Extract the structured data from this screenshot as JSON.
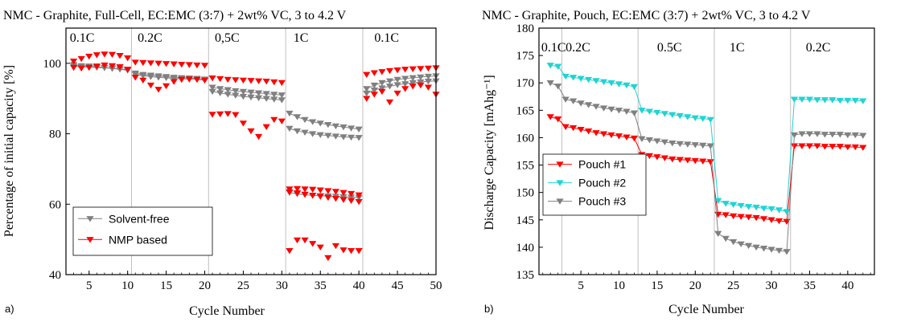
{
  "chart_data": [
    {
      "type": "scatter",
      "panel_label": "a)",
      "title": "NMC - Graphite, Full-Cell, EC:EMC (3:7) + 2wt% VC, 3 to 4.2 V",
      "xlabel": "Cycle Number",
      "ylabel": "Percentage of initial capacity [%]",
      "xlim": [
        2,
        50
      ],
      "ylim": [
        40,
        110
      ],
      "xticks": [
        5,
        10,
        15,
        20,
        25,
        30,
        35,
        40,
        45,
        50
      ],
      "yticks": [
        40,
        60,
        80,
        100
      ],
      "grid": false,
      "legend_position": "bottom-left",
      "region_dividers": [
        10.5,
        20.5,
        30.5,
        40.5
      ],
      "regions": [
        {
          "label": "0.1C",
          "x": 2.5
        },
        {
          "label": "0.2C",
          "x": 11.3
        },
        {
          "label": "0,5C",
          "x": 21.3
        },
        {
          "label": "1C",
          "x": 31.5
        },
        {
          "label": "0.1C",
          "x": 42
        }
      ],
      "series": [
        {
          "name": "Solvent-free",
          "color": "#808080",
          "marker": "triangle-down",
          "lines": true,
          "groups": [
            {
              "x": [
                3,
                4,
                5,
                6,
                7,
                8,
                9,
                10
              ],
              "y": [
                99.2,
                99.0,
                98.9,
                98.8,
                98.7,
                98.6,
                98.4,
                98.2
              ]
            },
            {
              "x": [
                3,
                4,
                5,
                6,
                7,
                8,
                9,
                10
              ],
              "y": [
                99.6,
                99.3,
                99.2,
                99.0,
                98.8,
                98.5,
                98.3,
                98.0
              ]
            },
            {
              "x": [
                11,
                12,
                13,
                14,
                15,
                16,
                17,
                18,
                19,
                20
              ],
              "y": [
                97.2,
                96.8,
                96.6,
                96.4,
                96.2,
                96.0,
                95.9,
                95.8,
                95.7,
                95.5
              ]
            },
            {
              "x": [
                11,
                12,
                13,
                14,
                15,
                16,
                17,
                18,
                19,
                20
              ],
              "y": [
                96.8,
                96.5,
                96.2,
                96.0,
                95.9,
                95.7,
                95.6,
                95.5,
                95.4,
                95.2
              ]
            },
            {
              "x": [
                21,
                22,
                23,
                24,
                25,
                26,
                27,
                28,
                29,
                30
              ],
              "y": [
                93.2,
                92.8,
                92.5,
                92.2,
                92.0,
                91.8,
                91.6,
                91.4,
                91.2,
                91.0
              ]
            },
            {
              "x": [
                21,
                22,
                23,
                24,
                25,
                26,
                27,
                28,
                29,
                30
              ],
              "y": [
                92.0,
                91.6,
                91.2,
                90.9,
                90.6,
                90.4,
                90.2,
                90.0,
                89.8,
                89.6
              ]
            },
            {
              "x": [
                31,
                32,
                33,
                34,
                35,
                36,
                37,
                38,
                39,
                40
              ],
              "y": [
                85.8,
                84.8,
                84.0,
                83.4,
                83.0,
                82.6,
                82.2,
                81.9,
                81.6,
                81.3
              ]
            },
            {
              "x": [
                31,
                32,
                33,
                34,
                35,
                36,
                37,
                38,
                39,
                40
              ],
              "y": [
                81.5,
                80.8,
                80.4,
                80.0,
                79.7,
                79.5,
                79.3,
                79.1,
                79.0,
                78.9
              ]
            },
            {
              "x": [
                31,
                32,
                33,
                34,
                35,
                36,
                37,
                38,
                39,
                40
              ],
              "y": [
                63.3,
                62.9,
                62.7,
                62.5,
                62.4,
                62.3,
                62.2,
                62.1,
                62.0,
                61.9
              ]
            },
            {
              "x": [
                41,
                42,
                43,
                44,
                45,
                46,
                47,
                48,
                49,
                50
              ],
              "y": [
                92.8,
                93.8,
                94.5,
                95.0,
                95.4,
                95.7,
                95.9,
                96.1,
                96.3,
                96.4
              ]
            },
            {
              "x": [
                41,
                42,
                43,
                44,
                45,
                46,
                47,
                48,
                49,
                50
              ],
              "y": [
                91.5,
                92.4,
                93.0,
                93.5,
                93.9,
                94.2,
                94.5,
                94.7,
                94.9,
                95.0
              ]
            }
          ]
        },
        {
          "name": "NMP based",
          "color": "#ff0000",
          "marker": "triangle-down",
          "lines": false,
          "groups": [
            {
              "x": [
                3,
                4,
                5,
                6,
                7,
                8,
                9,
                10
              ],
              "y": [
                100.6,
                101.3,
                102.0,
                102.4,
                102.6,
                102.5,
                102.2,
                101.5
              ]
            },
            {
              "x": [
                3,
                4,
                5,
                6,
                7,
                8,
                9,
                10
              ],
              "y": [
                98.8,
                98.6,
                98.8,
                99.2,
                99.5,
                99.3,
                99.0,
                98.3
              ]
            },
            {
              "x": [
                11,
                12,
                13,
                14,
                15,
                16,
                17,
                18,
                19,
                20
              ],
              "y": [
                100.3,
                100.2,
                100.1,
                100.0,
                99.9,
                99.8,
                99.7,
                99.6,
                99.5,
                99.4
              ]
            },
            {
              "x": [
                11,
                12,
                13,
                14,
                15,
                16,
                17,
                18,
                19,
                20
              ],
              "y": [
                96.0,
                95.2,
                93.8,
                92.6,
                93.6,
                94.8,
                95.4,
                95.5,
                95.4,
                95.2
              ]
            },
            {
              "x": [
                21,
                22,
                23,
                24,
                25,
                26,
                27,
                28,
                29,
                30
              ],
              "y": [
                95.8,
                95.6,
                95.4,
                95.3,
                95.2,
                95.1,
                95.0,
                94.9,
                94.7,
                94.5
              ]
            },
            {
              "x": [
                21,
                22,
                23,
                24,
                25,
                26,
                27,
                28,
                29,
                30
              ],
              "y": [
                85.5,
                85.6,
                85.7,
                85.4,
                83.0,
                80.8,
                79.2,
                82.0,
                84.0,
                83.6
              ]
            },
            {
              "x": [
                31,
                32,
                33,
                34,
                35,
                36,
                37,
                38,
                39,
                40
              ],
              "y": [
                64.3,
                64.4,
                64.3,
                64.2,
                64.0,
                63.8,
                63.6,
                63.3,
                63.0,
                62.6
              ]
            },
            {
              "x": [
                31,
                32,
                33,
                34,
                35,
                36,
                37,
                38,
                39,
                40
              ],
              "y": [
                63.5,
                63.2,
                62.8,
                62.5,
                62.2,
                61.9,
                61.6,
                61.3,
                61.0,
                60.7
              ]
            },
            {
              "x": [
                31,
                32,
                33,
                34,
                35,
                36,
                37,
                38,
                39,
                40
              ],
              "y": [
                46.8,
                49.8,
                49.8,
                48.8,
                47.8,
                44.8,
                48.2,
                47.0,
                46.8,
                46.8
              ]
            },
            {
              "x": [
                41,
                42,
                43,
                44,
                45,
                46,
                47,
                48,
                49,
                50
              ],
              "y": [
                96.8,
                97.3,
                97.6,
                97.9,
                98.1,
                98.3,
                98.4,
                98.5,
                98.6,
                98.7
              ]
            },
            {
              "x": [
                41,
                42,
                43,
                44,
                45,
                46,
                47,
                48,
                49,
                50
              ],
              "y": [
                90.0,
                91.2,
                92.0,
                89.0,
                91.5,
                92.8,
                93.5,
                93.8,
                93.2,
                91.2
              ]
            }
          ]
        }
      ]
    },
    {
      "type": "scatter",
      "panel_label": "b)",
      "title": "NMC - Graphite, Pouch, EC:EMC (3:7) + 2wt% VC, 3 to 4.2 V",
      "xlabel": "Cycle Number",
      "ylabel": "Discharge Capacity [mAhg⁻¹]",
      "xlim": [
        -0.5,
        43.5
      ],
      "ylim": [
        135,
        180
      ],
      "xticks": [
        5,
        10,
        15,
        20,
        25,
        30,
        35,
        40
      ],
      "yticks": [
        135,
        140,
        145,
        150,
        155,
        160,
        165,
        170,
        175,
        180
      ],
      "grid": false,
      "legend_position": "left",
      "region_dividers": [
        2.5,
        12.5,
        22.5,
        32.5
      ],
      "regions": [
        {
          "label": "0.1C",
          "x": -0.2
        },
        {
          "label": "0.2C",
          "x": 3.0
        },
        {
          "label": "0.5C",
          "x": 15.0
        },
        {
          "label": "1C",
          "x": 24.5
        },
        {
          "label": "0.2C",
          "x": 34.5
        }
      ],
      "series": [
        {
          "name": "Pouch #1",
          "color": "#ff0000",
          "marker": "triangle-down",
          "lines": true,
          "x": [
            1,
            2,
            3,
            4,
            5,
            6,
            7,
            8,
            9,
            10,
            11,
            12,
            13,
            14,
            15,
            16,
            17,
            18,
            19,
            20,
            21,
            22,
            23,
            24,
            25,
            26,
            27,
            28,
            29,
            30,
            31,
            32,
            33,
            34,
            35,
            36,
            37,
            38,
            39,
            40,
            41,
            42
          ],
          "y": [
            163.8,
            163.4,
            162.0,
            161.8,
            161.5,
            161.2,
            160.9,
            160.7,
            160.5,
            160.3,
            160.1,
            159.9,
            156.9,
            156.7,
            156.5,
            156.3,
            156.1,
            156.0,
            155.9,
            155.8,
            155.7,
            155.6,
            146.0,
            145.9,
            145.7,
            145.6,
            145.5,
            145.4,
            145.2,
            145.0,
            144.8,
            144.7,
            158.5,
            158.5,
            158.5,
            158.5,
            158.4,
            158.4,
            158.4,
            158.3,
            158.3,
            158.2
          ]
        },
        {
          "name": "Pouch #2",
          "color": "#22d3d3",
          "marker": "triangle-down",
          "lines": true,
          "x": [
            1,
            2,
            3,
            4,
            5,
            6,
            7,
            8,
            9,
            10,
            11,
            12,
            13,
            14,
            15,
            16,
            17,
            18,
            19,
            20,
            21,
            22,
            23,
            24,
            25,
            26,
            27,
            28,
            29,
            30,
            31,
            32,
            33,
            34,
            35,
            36,
            37,
            38,
            39,
            40,
            41,
            42
          ],
          "y": [
            173.2,
            173.0,
            171.2,
            171.0,
            170.8,
            170.6,
            170.4,
            170.2,
            170.0,
            169.8,
            169.6,
            169.3,
            165.0,
            164.8,
            164.6,
            164.4,
            164.2,
            164.0,
            163.8,
            163.6,
            163.5,
            163.3,
            148.5,
            148.0,
            147.8,
            147.6,
            147.4,
            147.3,
            147.1,
            147.0,
            146.8,
            146.5,
            167.0,
            167.0,
            167.0,
            166.9,
            166.9,
            166.9,
            166.8,
            166.8,
            166.8,
            166.7
          ]
        },
        {
          "name": "Pouch #3",
          "color": "#808080",
          "marker": "triangle-down",
          "lines": true,
          "x": [
            1,
            2,
            3,
            4,
            5,
            6,
            7,
            8,
            9,
            10,
            11,
            12,
            13,
            14,
            15,
            16,
            17,
            18,
            19,
            20,
            21,
            22,
            23,
            24,
            25,
            26,
            27,
            28,
            29,
            30,
            31,
            32,
            33,
            34,
            35,
            36,
            37,
            38,
            39,
            40,
            41,
            42
          ],
          "y": [
            170.0,
            169.4,
            167.0,
            166.7,
            166.3,
            166.0,
            165.7,
            165.4,
            165.2,
            165.0,
            164.8,
            164.5,
            159.8,
            159.6,
            159.4,
            159.2,
            159.0,
            158.9,
            158.8,
            158.7,
            158.6,
            158.5,
            142.5,
            141.6,
            141.0,
            140.6,
            140.3,
            140.0,
            139.8,
            139.6,
            139.4,
            139.2,
            160.5,
            160.7,
            160.7,
            160.7,
            160.6,
            160.6,
            160.6,
            160.5,
            160.5,
            160.4
          ]
        }
      ]
    }
  ]
}
